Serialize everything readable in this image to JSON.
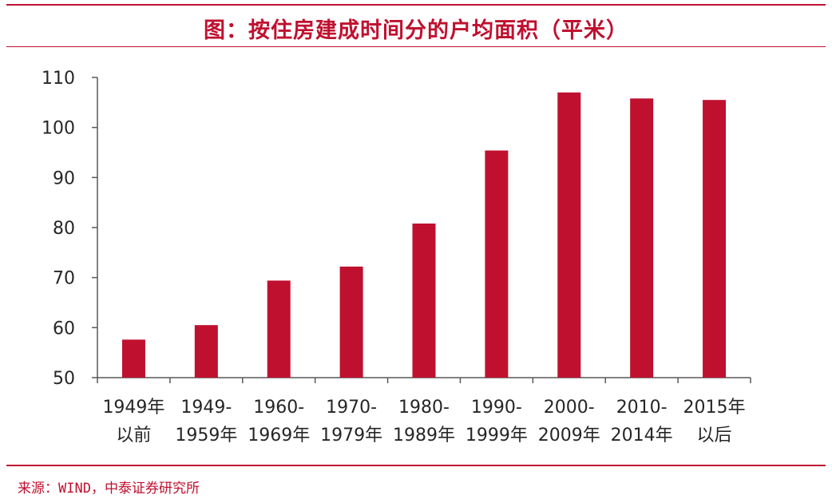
{
  "header": {
    "title": "图：按住房建成时间分的户均面积（平米）"
  },
  "footer": {
    "source": "来源：WIND，中泰证券研究所"
  },
  "colors": {
    "accent": "#c0102f",
    "bar": "#c0102f",
    "axis": "#595959",
    "text": "#262626"
  },
  "chart_data": {
    "type": "bar",
    "title": "图：按住房建成时间分的户均面积（平米）",
    "xlabel": "",
    "ylabel": "",
    "ylim": [
      50,
      110
    ],
    "yticks": [
      50,
      60,
      70,
      80,
      90,
      100,
      110
    ],
    "grid": false,
    "legend": "none",
    "categories": [
      [
        "1949年",
        "以前"
      ],
      [
        "1949-",
        "1959年"
      ],
      [
        "1960-",
        "1969年"
      ],
      [
        "1970-",
        "1979年"
      ],
      [
        "1980-",
        "1989年"
      ],
      [
        "1990-",
        "1999年"
      ],
      [
        "2000-",
        "2009年"
      ],
      [
        "2010-",
        "2014年"
      ],
      [
        "2015年",
        "以后"
      ]
    ],
    "values": [
      57.6,
      60.5,
      69.4,
      72.2,
      80.8,
      95.4,
      107.0,
      105.8,
      105.5
    ]
  }
}
